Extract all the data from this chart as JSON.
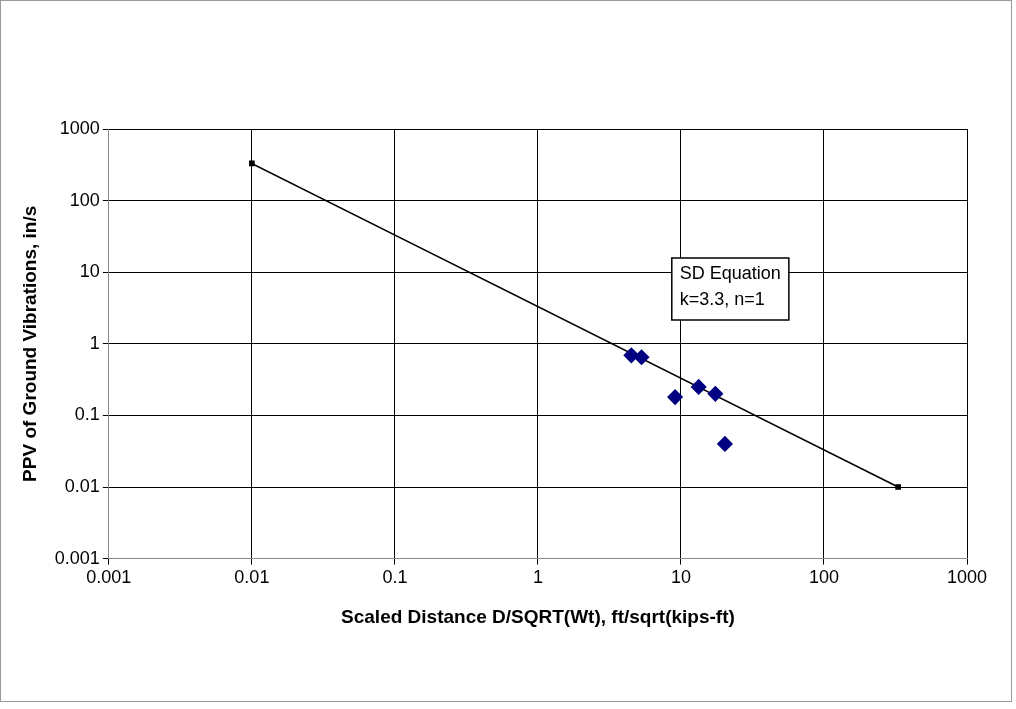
{
  "chart_data": {
    "type": "scatter",
    "xlabel": "Scaled Distance D/SQRT(Wt), ft/sqrt(kips-ft)",
    "ylabel": "PPV of Ground Vibrations, in/s",
    "log": "xy",
    "grid": true,
    "legend": false,
    "xlim": [
      0.001,
      1000
    ],
    "xticks": [
      0.001,
      0.01,
      0.1,
      1,
      10,
      100,
      1000
    ],
    "ylim": [
      0.001,
      1000
    ],
    "yticks": [
      0.001,
      0.01,
      0.1,
      1,
      10,
      100,
      1000
    ],
    "series": [
      {
        "type": "scatter",
        "color": "#000080",
        "marker": "diamond",
        "x": [
          4.5,
          5.3,
          9.1,
          13.3,
          17.4,
          20.3
        ],
        "values": [
          0.69,
          0.65,
          0.18,
          0.25,
          0.2,
          0.04
        ]
      },
      {
        "type": "line",
        "color": "#000000",
        "marker": "square",
        "line_style": "solid",
        "x": [
          0.01,
          330
        ],
        "values": [
          330,
          0.01
        ]
      }
    ],
    "annotations": [
      "SD Equation\nk=3.3, n=1"
    ]
  }
}
